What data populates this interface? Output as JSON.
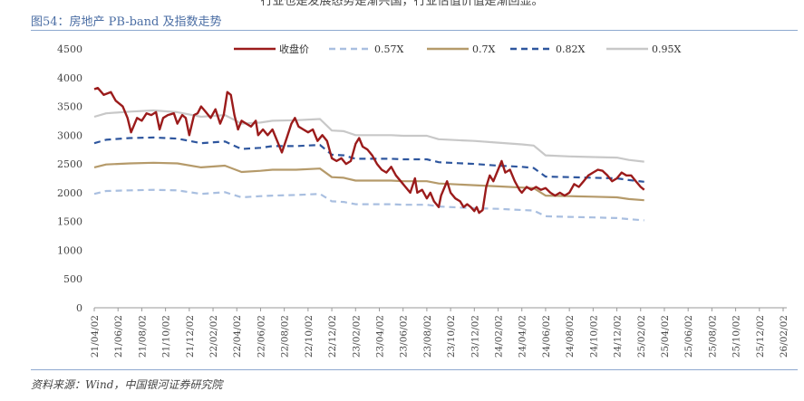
{
  "header": {
    "top_text": "行业也是发展态势是渐兴国，行业估值价值是渐回显。",
    "figure_title": "图54：房地产 PB-band 及指数走势"
  },
  "footer": {
    "source": "资料来源：Wind，中国银河证券研究院"
  },
  "colors": {
    "close": "#9b1b1b",
    "b057": "#a9bfe0",
    "b07": "#b59a6a",
    "b082": "#2e569e",
    "b095": "#c8c8c8"
  },
  "chart_data": {
    "type": "line",
    "title": "",
    "xlabel": "",
    "ylabel": "",
    "ylim": [
      0,
      4500
    ],
    "yticks": [
      0,
      500,
      1000,
      1500,
      2000,
      2500,
      3000,
      3500,
      4000,
      4500
    ],
    "xticks": [
      "21/04/02",
      "21/06/02",
      "21/08/02",
      "21/10/02",
      "21/12/02",
      "22/02/02",
      "22/04/02",
      "22/06/02",
      "22/08/02",
      "22/10/02",
      "22/12/02",
      "23/02/02",
      "23/04/02",
      "23/06/02",
      "23/08/02",
      "23/10/02",
      "23/12/02",
      "24/02/02",
      "24/04/02",
      "24/06/02",
      "24/08/02",
      "24/10/02",
      "24/12/02",
      "25/02/02",
      "25/04/02",
      "25/06/02",
      "25/08/02",
      "25/10/02",
      "25/12/02",
      "26/02/02"
    ],
    "legend_position": "top",
    "grid": false,
    "series": [
      {
        "name": "收盘价",
        "key": "close",
        "style": "solid",
        "points": [
          [
            0,
            3800
          ],
          [
            0.15,
            3820
          ],
          [
            0.4,
            3700
          ],
          [
            0.7,
            3750
          ],
          [
            0.9,
            3600
          ],
          [
            1.2,
            3500
          ],
          [
            1.4,
            3300
          ],
          [
            1.55,
            3050
          ],
          [
            1.8,
            3300
          ],
          [
            2.0,
            3250
          ],
          [
            2.2,
            3380
          ],
          [
            2.4,
            3350
          ],
          [
            2.6,
            3400
          ],
          [
            2.75,
            3100
          ],
          [
            2.9,
            3300
          ],
          [
            3.1,
            3350
          ],
          [
            3.35,
            3380
          ],
          [
            3.5,
            3200
          ],
          [
            3.7,
            3350
          ],
          [
            3.85,
            3300
          ],
          [
            4.0,
            3000
          ],
          [
            4.2,
            3350
          ],
          [
            4.35,
            3380
          ],
          [
            4.5,
            3500
          ],
          [
            4.7,
            3400
          ],
          [
            4.9,
            3300
          ],
          [
            5.1,
            3450
          ],
          [
            5.3,
            3200
          ],
          [
            5.45,
            3350
          ],
          [
            5.6,
            3750
          ],
          [
            5.75,
            3700
          ],
          [
            5.9,
            3350
          ],
          [
            6.05,
            3100
          ],
          [
            6.2,
            3250
          ],
          [
            6.4,
            3200
          ],
          [
            6.6,
            3150
          ],
          [
            6.8,
            3250
          ],
          [
            6.9,
            3000
          ],
          [
            7.1,
            3100
          ],
          [
            7.3,
            3000
          ],
          [
            7.5,
            3100
          ],
          [
            7.7,
            2900
          ],
          [
            7.9,
            2700
          ],
          [
            8.1,
            2950
          ],
          [
            8.3,
            3200
          ],
          [
            8.45,
            3300
          ],
          [
            8.6,
            3150
          ],
          [
            8.8,
            3100
          ],
          [
            9.0,
            3050
          ],
          [
            9.2,
            3100
          ],
          [
            9.4,
            2900
          ],
          [
            9.6,
            3000
          ],
          [
            9.8,
            2900
          ],
          [
            10.0,
            2600
          ],
          [
            10.2,
            2550
          ],
          [
            10.4,
            2600
          ],
          [
            10.6,
            2500
          ],
          [
            10.8,
            2550
          ],
          [
            11.0,
            2850
          ],
          [
            11.15,
            2950
          ],
          [
            11.3,
            2800
          ],
          [
            11.5,
            2750
          ],
          [
            11.7,
            2650
          ],
          [
            11.9,
            2500
          ],
          [
            12.1,
            2400
          ],
          [
            12.3,
            2350
          ],
          [
            12.5,
            2450
          ],
          [
            12.7,
            2300
          ],
          [
            12.9,
            2200
          ],
          [
            13.1,
            2100
          ],
          [
            13.3,
            2000
          ],
          [
            13.5,
            2250
          ],
          [
            13.6,
            2000
          ],
          [
            13.8,
            2050
          ],
          [
            14.0,
            1900
          ],
          [
            14.15,
            2000
          ],
          [
            14.3,
            1850
          ],
          [
            14.5,
            1750
          ],
          [
            14.6,
            1950
          ],
          [
            14.75,
            2100
          ],
          [
            14.85,
            2200
          ],
          [
            15.0,
            2000
          ],
          [
            15.2,
            1900
          ],
          [
            15.4,
            1850
          ],
          [
            15.55,
            1750
          ],
          [
            15.7,
            1800
          ],
          [
            15.85,
            1750
          ],
          [
            16.0,
            1680
          ],
          [
            16.1,
            1750
          ],
          [
            16.2,
            1650
          ],
          [
            16.35,
            1700
          ],
          [
            16.5,
            2100
          ],
          [
            16.65,
            2300
          ],
          [
            16.8,
            2200
          ],
          [
            17.0,
            2400
          ],
          [
            17.15,
            2550
          ],
          [
            17.3,
            2350
          ],
          [
            17.5,
            2400
          ],
          [
            17.7,
            2200
          ],
          [
            17.9,
            2050
          ],
          [
            18.0,
            2000
          ],
          [
            18.2,
            2100
          ],
          [
            18.4,
            2050
          ],
          [
            18.6,
            2100
          ],
          [
            18.8,
            2050
          ],
          [
            19.0,
            2080
          ],
          [
            19.2,
            2000
          ],
          [
            19.4,
            1950
          ],
          [
            19.6,
            2000
          ],
          [
            19.8,
            1950
          ],
          [
            20.0,
            2000
          ],
          [
            20.2,
            2150
          ],
          [
            20.4,
            2100
          ],
          [
            20.6,
            2200
          ],
          [
            20.8,
            2300
          ],
          [
            21.0,
            2350
          ],
          [
            21.2,
            2400
          ],
          [
            21.4,
            2380
          ],
          [
            21.6,
            2300
          ],
          [
            21.8,
            2200
          ],
          [
            22.0,
            2250
          ],
          [
            22.2,
            2350
          ],
          [
            22.4,
            2300
          ],
          [
            22.6,
            2300
          ],
          [
            22.8,
            2200
          ],
          [
            23.0,
            2100
          ],
          [
            23.15,
            2050
          ]
        ]
      },
      {
        "name": "0.57X",
        "key": "b057",
        "style": "dash",
        "points": [
          [
            0,
            1980
          ],
          [
            0.5,
            2030
          ],
          [
            1.5,
            2040
          ],
          [
            2.5,
            2050
          ],
          [
            3.5,
            2040
          ],
          [
            4.5,
            1980
          ],
          [
            5.5,
            2010
          ],
          [
            6.2,
            1920
          ],
          [
            7.0,
            1940
          ],
          [
            7.5,
            1950
          ],
          [
            8.5,
            1960
          ],
          [
            9.5,
            1980
          ],
          [
            10.0,
            1850
          ],
          [
            10.5,
            1840
          ],
          [
            11.0,
            1800
          ],
          [
            12.5,
            1800
          ],
          [
            13.0,
            1790
          ],
          [
            14.0,
            1790
          ],
          [
            14.5,
            1760
          ],
          [
            15.5,
            1740
          ],
          [
            16.0,
            1730
          ],
          [
            17.0,
            1720
          ],
          [
            18.0,
            1700
          ],
          [
            18.5,
            1690
          ],
          [
            19.0,
            1590
          ],
          [
            20.0,
            1580
          ],
          [
            21.0,
            1570
          ],
          [
            22.0,
            1560
          ],
          [
            22.5,
            1540
          ],
          [
            23.15,
            1520
          ]
        ]
      },
      {
        "name": "0.7X",
        "key": "b07",
        "style": "solid",
        "points": [
          [
            0,
            2440
          ],
          [
            0.5,
            2490
          ],
          [
            1.5,
            2510
          ],
          [
            2.5,
            2520
          ],
          [
            3.5,
            2510
          ],
          [
            4.5,
            2440
          ],
          [
            5.5,
            2470
          ],
          [
            6.2,
            2360
          ],
          [
            7.0,
            2380
          ],
          [
            7.5,
            2400
          ],
          [
            8.5,
            2400
          ],
          [
            9.5,
            2420
          ],
          [
            10.0,
            2270
          ],
          [
            10.5,
            2260
          ],
          [
            11.0,
            2210
          ],
          [
            12.5,
            2210
          ],
          [
            13.0,
            2200
          ],
          [
            14.0,
            2200
          ],
          [
            14.5,
            2160
          ],
          [
            15.5,
            2140
          ],
          [
            16.0,
            2130
          ],
          [
            17.0,
            2110
          ],
          [
            18.0,
            2090
          ],
          [
            18.5,
            2080
          ],
          [
            19.0,
            1950
          ],
          [
            20.0,
            1940
          ],
          [
            21.0,
            1930
          ],
          [
            22.0,
            1920
          ],
          [
            22.5,
            1890
          ],
          [
            23.15,
            1870
          ]
        ]
      },
      {
        "name": "0.82X",
        "key": "b082",
        "style": "dash",
        "points": [
          [
            0,
            2860
          ],
          [
            0.5,
            2920
          ],
          [
            1.5,
            2950
          ],
          [
            2.5,
            2960
          ],
          [
            3.5,
            2940
          ],
          [
            4.5,
            2860
          ],
          [
            5.5,
            2890
          ],
          [
            6.2,
            2760
          ],
          [
            7.0,
            2780
          ],
          [
            7.5,
            2810
          ],
          [
            8.5,
            2810
          ],
          [
            9.5,
            2830
          ],
          [
            10.0,
            2660
          ],
          [
            10.5,
            2650
          ],
          [
            11.0,
            2590
          ],
          [
            12.5,
            2590
          ],
          [
            13.0,
            2580
          ],
          [
            14.0,
            2580
          ],
          [
            14.5,
            2530
          ],
          [
            15.5,
            2510
          ],
          [
            16.0,
            2500
          ],
          [
            17.0,
            2470
          ],
          [
            18.0,
            2450
          ],
          [
            18.5,
            2430
          ],
          [
            19.0,
            2280
          ],
          [
            20.0,
            2270
          ],
          [
            21.0,
            2260
          ],
          [
            22.0,
            2250
          ],
          [
            22.5,
            2220
          ],
          [
            23.15,
            2190
          ]
        ]
      },
      {
        "name": "0.95X",
        "key": "b095",
        "style": "solid",
        "points": [
          [
            0,
            3320
          ],
          [
            0.5,
            3380
          ],
          [
            1.5,
            3410
          ],
          [
            2.5,
            3430
          ],
          [
            3.5,
            3400
          ],
          [
            4.5,
            3320
          ],
          [
            5.5,
            3350
          ],
          [
            6.2,
            3200
          ],
          [
            7.0,
            3220
          ],
          [
            7.5,
            3250
          ],
          [
            8.5,
            3260
          ],
          [
            9.5,
            3280
          ],
          [
            10.0,
            3080
          ],
          [
            10.5,
            3070
          ],
          [
            11.0,
            3000
          ],
          [
            12.5,
            3000
          ],
          [
            13.0,
            2990
          ],
          [
            14.0,
            2990
          ],
          [
            14.5,
            2930
          ],
          [
            15.5,
            2910
          ],
          [
            16.0,
            2900
          ],
          [
            17.0,
            2870
          ],
          [
            18.0,
            2840
          ],
          [
            18.5,
            2820
          ],
          [
            19.0,
            2650
          ],
          [
            20.0,
            2630
          ],
          [
            21.0,
            2620
          ],
          [
            22.0,
            2610
          ],
          [
            22.5,
            2570
          ],
          [
            23.15,
            2540
          ]
        ]
      }
    ]
  }
}
